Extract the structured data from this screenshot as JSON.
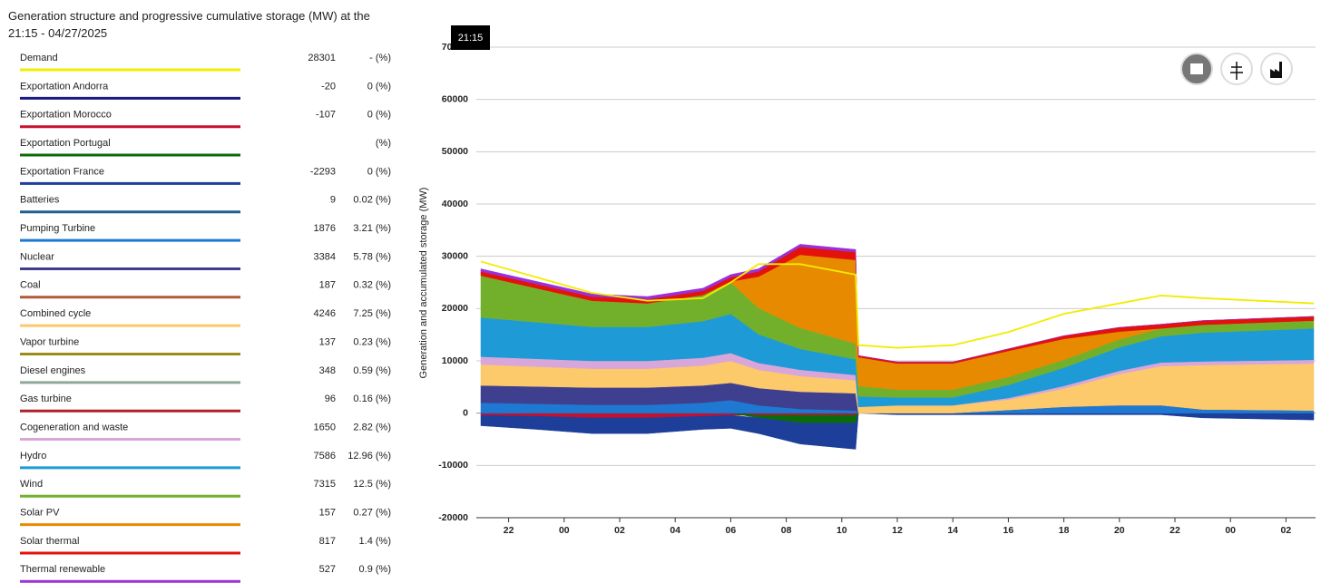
{
  "title": "Generation structure and progressive cumulative storage (MW) at the 21:15 - 04/27/2025",
  "legend": [
    {
      "name": "Demand",
      "value": 28301,
      "share": "- (%)",
      "color": "#f2ec00",
      "line": [
        29000,
        26000,
        23000,
        21500,
        22000,
        25000,
        28500,
        28500,
        26500,
        13000,
        12500,
        13000,
        15500,
        19000,
        21000,
        22500,
        22000,
        21000
      ]
    },
    {
      "name": "Exportation Andorra",
      "value": -20,
      "share": "0 (%)",
      "color": "#1a1a80",
      "area": [
        -100,
        -100,
        -100,
        -100,
        -100,
        -100,
        -100,
        -100,
        -100,
        0,
        0,
        0,
        0,
        0,
        0,
        0,
        -100,
        -100
      ]
    },
    {
      "name": "Exportation Morocco",
      "value": -107,
      "share": "0 (%)",
      "color": "#c8102e",
      "area": [
        -300,
        -500,
        -800,
        -800,
        -500,
        -300,
        -300,
        -300,
        -300,
        0,
        0,
        0,
        0,
        0,
        0,
        0,
        0,
        0
      ]
    },
    {
      "name": "Exportation Portugal",
      "value": null,
      "share": "(%)",
      "color": "#0b6b0b",
      "area": [
        0,
        0,
        0,
        0,
        0,
        0,
        -500,
        -1500,
        -1500,
        0,
        0,
        0,
        0,
        0,
        0,
        0,
        0,
        0
      ]
    },
    {
      "name": "Exportation France",
      "value": -2293,
      "share": "0 (%)",
      "color": "#1d3f9a",
      "area": [
        -2000,
        -2500,
        -3000,
        -3000,
        -2500,
        -2500,
        -3000,
        -4000,
        -5000,
        0,
        -300,
        -300,
        -300,
        -300,
        -300,
        -300,
        -800,
        -1200
      ]
    },
    {
      "name": "Batteries",
      "value": 9,
      "share": "0.02 (%)",
      "color": "#1f5f8f"
    },
    {
      "name": "Pumping Turbine",
      "value": 1876,
      "share": "3.21 (%)",
      "color": "#1f78d1",
      "area": [
        2000,
        1800,
        1600,
        1600,
        2000,
        2500,
        1500,
        800,
        500,
        0,
        0,
        0,
        600,
        1200,
        1500,
        1500,
        700,
        500
      ]
    },
    {
      "name": "Nuclear",
      "value": 3384,
      "share": "5.78 (%)",
      "color": "#3f3f8f",
      "area": [
        3300,
        3300,
        3300,
        3300,
        3300,
        3300,
        3300,
        3300,
        3300,
        0,
        0,
        0,
        0,
        0,
        0,
        0,
        0,
        0
      ]
    },
    {
      "name": "Coal",
      "value": 187,
      "share": "0.32 (%)",
      "color": "#b05a3a"
    },
    {
      "name": "Combined cycle",
      "value": 4246,
      "share": "7.25 (%)",
      "color": "#fcc96b",
      "area": [
        4000,
        3800,
        3600,
        3600,
        3800,
        4200,
        3500,
        3000,
        2500,
        1200,
        1500,
        1500,
        2000,
        3500,
        6000,
        7500,
        8500,
        9000
      ]
    },
    {
      "name": "Vapor turbine",
      "value": 137,
      "share": "0.23 (%)",
      "color": "#9b8b1a"
    },
    {
      "name": "Diesel engines",
      "value": 348,
      "share": "0.59 (%)",
      "color": "#8fa89a"
    },
    {
      "name": "Gas turbine",
      "value": 96,
      "share": "0.16 (%)",
      "color": "#b0202a"
    },
    {
      "name": "Cogeneration and waste",
      "value": 1650,
      "share": "2.82 (%)",
      "color": "#d9a6d9",
      "area": [
        1500,
        1500,
        1500,
        1500,
        1500,
        1500,
        1300,
        1200,
        1000,
        0,
        0,
        0,
        300,
        500,
        600,
        700,
        700,
        700
      ]
    },
    {
      "name": "Hydro",
      "value": 7586,
      "share": "12.96 (%)",
      "color": "#1e9bd7",
      "area": [
        7500,
        7000,
        6500,
        6500,
        7000,
        7500,
        5500,
        4000,
        3000,
        2000,
        1500,
        1500,
        2500,
        3500,
        4500,
        5000,
        5500,
        6000
      ]
    },
    {
      "name": "Wind",
      "value": 7315,
      "share": "12.5 (%)",
      "color": "#72b02c",
      "area": [
        8000,
        6500,
        5000,
        4500,
        5000,
        6000,
        5000,
        4000,
        3000,
        2000,
        1500,
        1500,
        1500,
        1500,
        1500,
        1500,
        1500,
        1500
      ]
    },
    {
      "name": "Solar PV",
      "value": 157,
      "share": "0.27 (%)",
      "color": "#e88a00",
      "area": [
        0,
        0,
        0,
        0,
        0,
        200,
        6000,
        14000,
        16000,
        5500,
        5000,
        5000,
        5000,
        4000,
        1500,
        0,
        0,
        0
      ]
    },
    {
      "name": "Solar thermal",
      "value": 817,
      "share": "1.4 (%)",
      "color": "#e3120b",
      "area": [
        800,
        800,
        800,
        800,
        800,
        800,
        1000,
        1500,
        1500,
        300,
        300,
        300,
        400,
        600,
        800,
        800,
        800,
        800
      ]
    },
    {
      "name": "Thermal renewable",
      "value": 527,
      "share": "0.9 (%)",
      "color": "#9b30d9",
      "area": [
        500,
        500,
        500,
        500,
        500,
        500,
        500,
        500,
        500,
        0,
        0,
        0,
        0,
        0,
        0,
        0,
        0,
        0
      ]
    }
  ],
  "chart_data": {
    "type": "stacked-area",
    "y_label": "Generation and accumulated storage (MW)",
    "tooltip": "21:15",
    "x": [
      -1,
      1,
      3,
      5,
      7,
      8,
      9,
      10.5,
      12.5,
      12.6,
      14,
      16,
      18,
      20,
      22,
      23.5,
      25,
      29
    ],
    "xlim": [
      -1,
      29
    ],
    "xticks": [
      {
        "value": 0,
        "label": "22"
      },
      {
        "value": 2,
        "label": "00"
      },
      {
        "value": 4,
        "label": "02"
      },
      {
        "value": 6,
        "label": "04"
      },
      {
        "value": 8,
        "label": "06"
      },
      {
        "value": 10,
        "label": "08"
      },
      {
        "value": 12,
        "label": "10"
      },
      {
        "value": 14,
        "label": "12"
      },
      {
        "value": 16,
        "label": "14"
      },
      {
        "value": 18,
        "label": "16"
      },
      {
        "value": 20,
        "label": "18"
      },
      {
        "value": 22,
        "label": "20"
      },
      {
        "value": 24,
        "label": "22"
      },
      {
        "value": 26,
        "label": "00"
      },
      {
        "value": 28,
        "label": "02"
      }
    ],
    "ylim": [
      -20000,
      70000
    ],
    "yticks": [
      -20000,
      -10000,
      0,
      10000,
      20000,
      30000,
      40000,
      50000,
      60000,
      70000
    ],
    "grid": true
  }
}
